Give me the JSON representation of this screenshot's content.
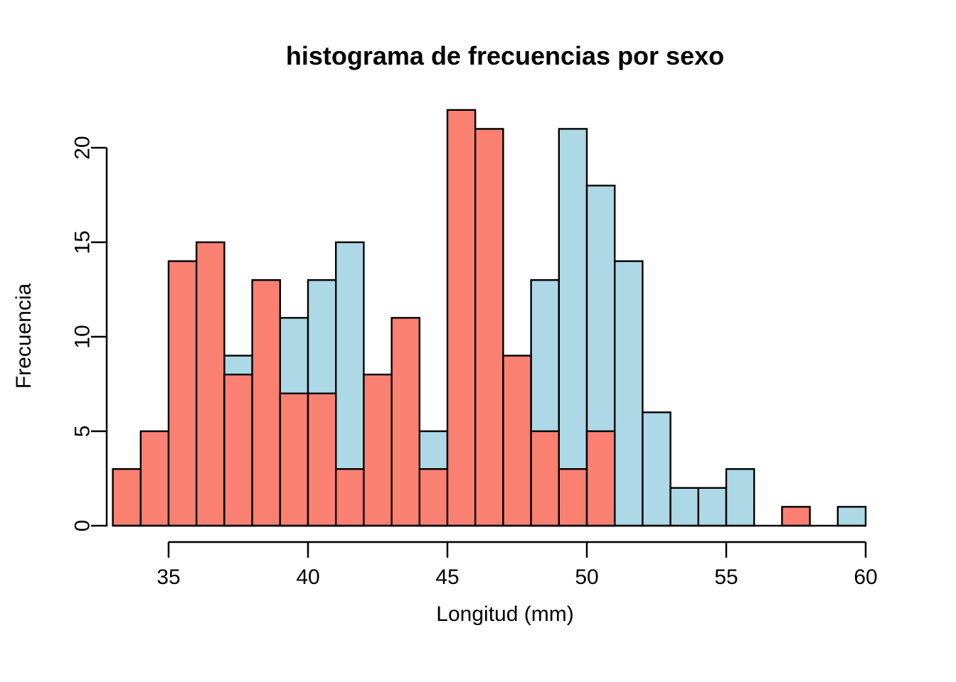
{
  "chart_data": {
    "type": "bar",
    "subtype": "overlaid-histogram",
    "title": "histograma de frecuencias por sexo",
    "xlabel": "Longitud (mm)",
    "ylabel": "Frecuencia",
    "background_color": "#FFFFFF",
    "bar_border_color": "#000000",
    "axis_color": "#000000",
    "grid": "off",
    "legend": "none",
    "bin_start": 33,
    "bin_width": 1,
    "xlim": [
      33,
      60
    ],
    "ylim": [
      0,
      22
    ],
    "x_ticks": [
      35,
      40,
      45,
      50,
      55,
      60
    ],
    "y_ticks": [
      0,
      5,
      10,
      15,
      20
    ],
    "categories": [
      33,
      34,
      35,
      36,
      37,
      38,
      39,
      40,
      41,
      42,
      43,
      44,
      45,
      46,
      47,
      48,
      49,
      50,
      51,
      52,
      53,
      54,
      55,
      56,
      57,
      58,
      59
    ],
    "series": [
      {
        "name": "blue",
        "color": "#ADD8E6",
        "values": [
          0,
          0,
          0,
          0,
          9,
          0,
          11,
          13,
          15,
          0,
          0,
          5,
          0,
          0,
          0,
          13,
          21,
          18,
          14,
          6,
          2,
          2,
          3,
          0,
          0,
          0,
          1
        ]
      },
      {
        "name": "red",
        "color": "#FA8072",
        "values": [
          3,
          5,
          14,
          15,
          8,
          13,
          7,
          7,
          3,
          8,
          11,
          3,
          22,
          21,
          9,
          5,
          3,
          5,
          0,
          0,
          0,
          0,
          0,
          0,
          1,
          0,
          0
        ]
      }
    ]
  }
}
